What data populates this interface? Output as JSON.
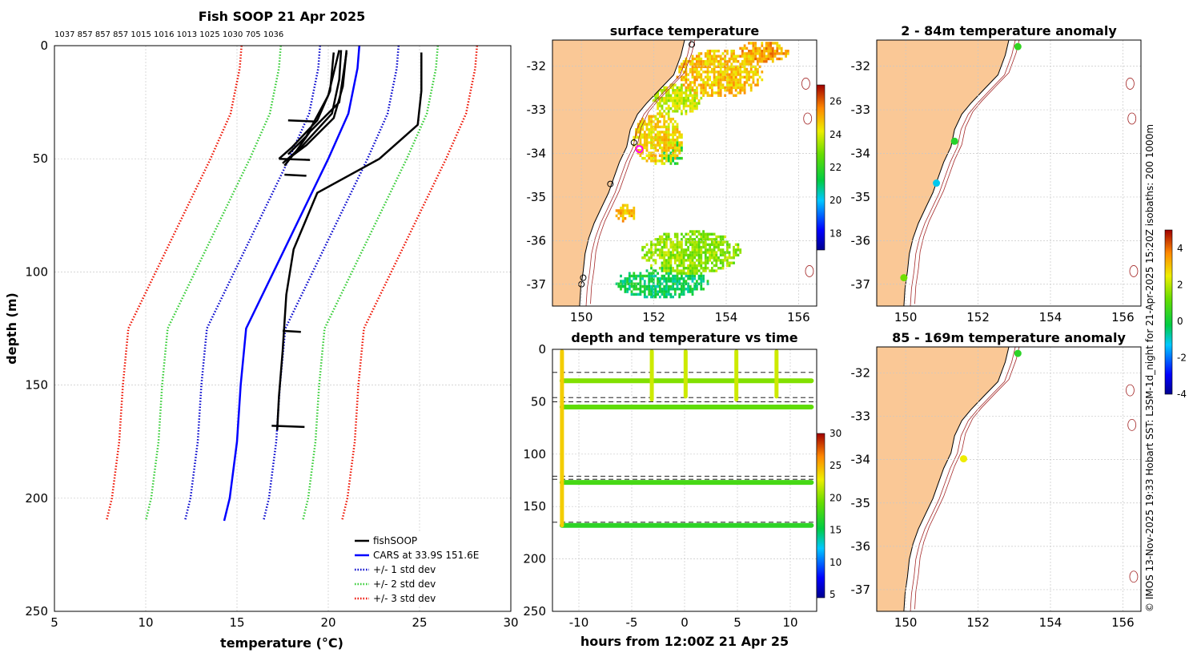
{
  "figure_title": "Fish SOOP 21 Apr 2025",
  "top_counts": "1037 857 857 857 1015 1016 1013 1025 1030 705 1036",
  "side_note": "© IMOS 13-Nov-2025 19:33 Hobart SST: L3SM-1d_night for 21-Apr-2025 15:20Z isobaths: 200  1000m",
  "colors": {
    "fishsoop": "#000000",
    "cars": "#0000ff",
    "std1": "#0000cc",
    "std2": "#33cc33",
    "std3": "#ee1100",
    "land": "#fac896"
  },
  "chart_data": [
    {
      "id": "profile",
      "type": "line",
      "title": "Fish SOOP 21 Apr 2025",
      "xlabel": "temperature (°C)",
      "ylabel": "depth (m)",
      "xlim": [
        5,
        30
      ],
      "ylim": [
        250,
        0
      ],
      "xticks": [
        5,
        10,
        15,
        20,
        25,
        30
      ],
      "yticks": [
        0,
        50,
        100,
        150,
        200,
        250
      ],
      "grid": true,
      "legend_position": "bottom-right",
      "legend": [
        "fishSOOP",
        "CARS at 33.9S 151.6E",
        "+/- 1 std dev",
        "+/- 2 std dev",
        "+/- 3 std dev"
      ],
      "depths": [
        0,
        10,
        30,
        50,
        75,
        100,
        125,
        150,
        175,
        200,
        210
      ],
      "cars_mean": [
        21.7,
        21.6,
        21.1,
        20.0,
        18.5,
        17.0,
        15.5,
        15.2,
        15.0,
        14.6,
        14.3
      ],
      "std_offsets": [
        2.15,
        4.3,
        6.45
      ],
      "fishsoop_profiles": [
        {
          "name": "cast-1",
          "temp": [
            25.1,
            25.1,
            24.9,
            22.8,
            19.4,
            18.1,
            17.7,
            17.5,
            17.3,
            17.2
          ],
          "depth": [
            3,
            20,
            35,
            50,
            65,
            90,
            110,
            135,
            155,
            170
          ]
        },
        {
          "name": "cast-2",
          "temp": [
            20.7,
            20.6,
            20.2,
            18.5,
            17.5
          ],
          "depth": [
            2,
            15,
            30,
            45,
            52
          ]
        },
        {
          "name": "cast-3",
          "temp": [
            21.0,
            20.8,
            20.3,
            18.8,
            17.8
          ],
          "depth": [
            2,
            18,
            32,
            44,
            50
          ]
        },
        {
          "name": "cast-4",
          "temp": [
            20.3,
            20.1,
            19.4,
            18.0,
            17.3
          ],
          "depth": [
            3,
            20,
            33,
            45,
            50
          ]
        },
        {
          "name": "cast-5",
          "temp": [
            21.0,
            20.6,
            19.0,
            18.3,
            17.6
          ],
          "depth": [
            3,
            25,
            38,
            46,
            53
          ]
        },
        {
          "name": "cast-6",
          "temp": [
            20.6,
            20.0,
            18.8,
            17.8
          ],
          "depth": [
            2,
            22,
            40,
            48
          ]
        }
      ]
    },
    {
      "id": "sst_map",
      "type": "heatmap",
      "title": "surface temperature",
      "xlim": [
        149.2,
        156.5
      ],
      "ylim": [
        -37.5,
        -31.4
      ],
      "xticks": [
        150,
        152,
        154,
        156
      ],
      "yticks": [
        -32,
        -33,
        -34,
        -35,
        -36,
        -37
      ],
      "colorbar_range": [
        17,
        27
      ],
      "colorbar_ticks": [
        18,
        20,
        22,
        24,
        26
      ],
      "marker_lon": 151.6,
      "marker_lat": -33.9
    },
    {
      "id": "anomaly_shallow",
      "type": "scatter",
      "title": "2 - 84m temperature anomaly",
      "xlim": [
        149.2,
        156.5
      ],
      "ylim": [
        -37.5,
        -31.4
      ],
      "xticks": [
        150,
        152,
        154,
        156
      ],
      "yticks": [
        -32,
        -33,
        -34,
        -35,
        -36,
        -37
      ],
      "colorbar_range": [
        -4,
        5
      ],
      "colorbar_ticks": [
        -4,
        -2,
        0,
        2,
        4
      ],
      "points": [
        {
          "lon": 153.1,
          "lat": -31.55,
          "anomaly": 0.5
        },
        {
          "lon": 151.35,
          "lat": -33.72,
          "anomaly": 0.3
        },
        {
          "lon": 150.85,
          "lat": -34.68,
          "anomaly": -1.2
        },
        {
          "lon": 149.95,
          "lat": -36.85,
          "anomaly": 1.3
        }
      ]
    },
    {
      "id": "anomaly_deep",
      "type": "scatter",
      "title": "85 - 169m temperature anomaly",
      "xlim": [
        149.2,
        156.5
      ],
      "ylim": [
        -37.5,
        -31.4
      ],
      "xticks": [
        150,
        152,
        154,
        156
      ],
      "yticks": [
        -32,
        -33,
        -34,
        -35,
        -36,
        -37
      ],
      "points": [
        {
          "lon": 153.1,
          "lat": -31.55,
          "anomaly": 0.4
        },
        {
          "lon": 151.6,
          "lat": -33.98,
          "anomaly": 2.5
        }
      ]
    },
    {
      "id": "depth_time",
      "type": "scatter",
      "title": "depth and temperature vs time",
      "xlabel": "hours from 12:00Z 21 Apr 25",
      "xlim": [
        -12.5,
        12.5
      ],
      "ylim": [
        250,
        0
      ],
      "xticks": [
        -10,
        -5,
        0,
        5,
        10
      ],
      "yticks": [
        0,
        50,
        100,
        150,
        200,
        250
      ],
      "colorbar_range": [
        4.5,
        30
      ],
      "colorbar_ticks": [
        5,
        10,
        15,
        20,
        25,
        30
      ],
      "dashed_depths": [
        22,
        46,
        50,
        121,
        124,
        165
      ],
      "bands": [
        {
          "depth": 30,
          "x0": -11.6,
          "x1": 12.0,
          "temp": 20
        },
        {
          "depth": 55,
          "x0": -11.6,
          "x1": 12.0,
          "temp": 19
        },
        {
          "depth": 127,
          "x0": -11.6,
          "x1": 12.0,
          "temp": 18
        },
        {
          "depth": 168,
          "x0": -11.6,
          "x1": 12.0,
          "temp": 17
        }
      ],
      "casts": [
        {
          "hour": -11.6,
          "d0": 2,
          "d1": 168,
          "temp": 24
        },
        {
          "hour": -3.1,
          "d0": 2,
          "d1": 48,
          "temp": 22
        },
        {
          "hour": 0.1,
          "d0": 2,
          "d1": 45,
          "temp": 22
        },
        {
          "hour": 4.9,
          "d0": 2,
          "d1": 48,
          "temp": 22
        },
        {
          "hour": 8.7,
          "d0": 2,
          "d1": 45,
          "temp": 22
        }
      ]
    }
  ]
}
